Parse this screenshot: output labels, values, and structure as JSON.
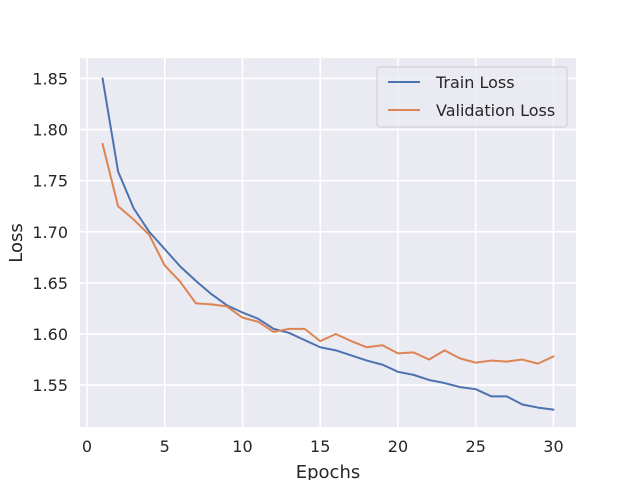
{
  "chart_data": {
    "type": "line",
    "title": "",
    "xlabel": "Epochs",
    "ylabel": "Loss",
    "xlim": [
      -0.45,
      31.45
    ],
    "ylim": [
      1.509,
      1.87
    ],
    "xticks": [
      0,
      5,
      10,
      15,
      20,
      25,
      30
    ],
    "xtick_labels": [
      "0",
      "5",
      "10",
      "15",
      "20",
      "25",
      "30"
    ],
    "yticks": [
      1.55,
      1.6,
      1.65,
      1.7,
      1.75,
      1.8,
      1.85
    ],
    "ytick_labels": [
      "1.55",
      "1.60",
      "1.65",
      "1.70",
      "1.75",
      "1.80",
      "1.85"
    ],
    "grid": true,
    "legend_position": "upper right",
    "background_color": "#EAEAF2",
    "x": [
      1,
      2,
      3,
      4,
      5,
      6,
      7,
      8,
      9,
      10,
      11,
      12,
      13,
      14,
      15,
      16,
      17,
      18,
      19,
      20,
      21,
      22,
      23,
      24,
      25,
      26,
      27,
      28,
      29,
      30
    ],
    "series": [
      {
        "name": "Train Loss",
        "color": "#4C72B0",
        "values": [
          1.85,
          1.759,
          1.723,
          1.7,
          1.683,
          1.666,
          1.652,
          1.639,
          1.628,
          1.621,
          1.615,
          1.605,
          1.601,
          1.594,
          1.587,
          1.584,
          1.579,
          1.574,
          1.57,
          1.563,
          1.56,
          1.555,
          1.552,
          1.548,
          1.546,
          1.539,
          1.539,
          1.531,
          1.528,
          1.526
        ]
      },
      {
        "name": "Validation Loss",
        "color": "#DD8452",
        "values": [
          1.786,
          1.725,
          1.712,
          1.697,
          1.667,
          1.651,
          1.63,
          1.629,
          1.627,
          1.616,
          1.612,
          1.602,
          1.605,
          1.605,
          1.593,
          1.6,
          1.593,
          1.587,
          1.589,
          1.581,
          1.582,
          1.575,
          1.584,
          1.576,
          1.572,
          1.574,
          1.573,
          1.575,
          1.571,
          1.578
        ]
      }
    ]
  }
}
